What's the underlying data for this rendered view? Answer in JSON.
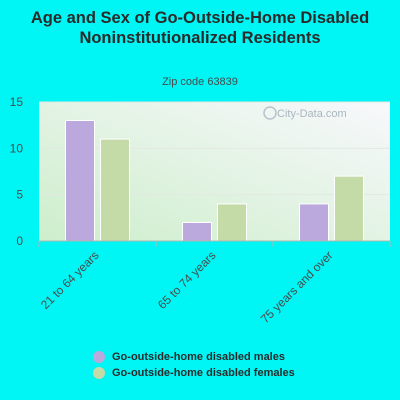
{
  "chart_data": {
    "type": "bar",
    "title": "Age and Sex of Go-Outside-Home Disabled Noninstitutionalized Residents",
    "subtitle": "Zip code 63839",
    "watermark": "City-Data.com",
    "categories": [
      "21 to 64 years",
      "65 to 74 years",
      "75 years and over"
    ],
    "series": [
      {
        "name": "Go-outside-home disabled males",
        "color": "#bba8dc",
        "values": [
          13,
          2,
          4
        ]
      },
      {
        "name": "Go-outside-home disabled females",
        "color": "#c4dba8",
        "values": [
          11,
          4,
          7
        ]
      }
    ],
    "ylim": [
      0,
      15
    ],
    "yticks": [
      "0",
      "5",
      "10",
      "15"
    ],
    "grid": true,
    "legend_position": "bottom"
  }
}
